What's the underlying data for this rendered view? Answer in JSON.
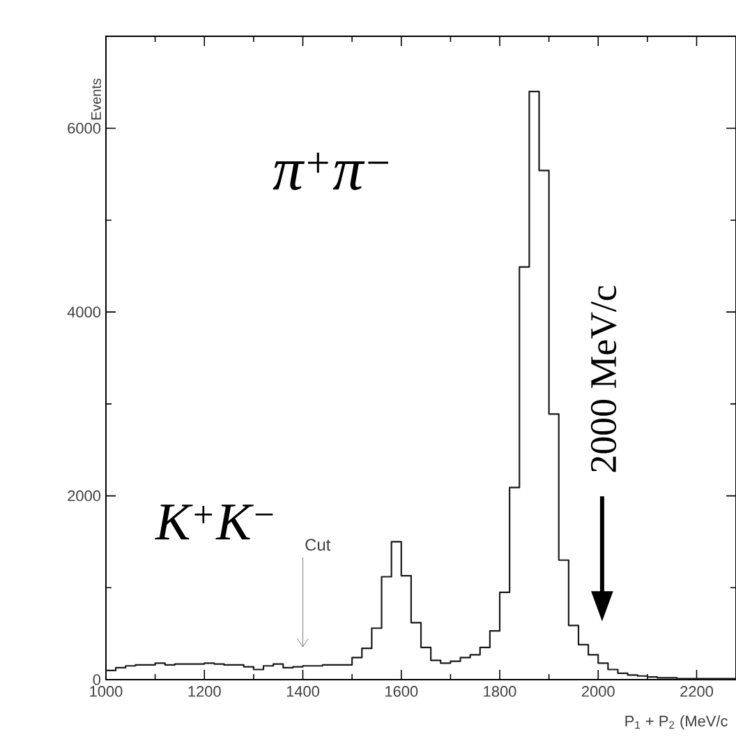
{
  "chart_data": {
    "type": "histogram",
    "color": "#1a1a1a",
    "bins": [
      1000,
      1020,
      1040,
      1060,
      1080,
      1100,
      1120,
      1140,
      1160,
      1180,
      1200,
      1220,
      1240,
      1260,
      1280,
      1300,
      1320,
      1340,
      1360,
      1380,
      1400,
      1420,
      1440,
      1460,
      1480,
      1500,
      1520,
      1540,
      1560,
      1580,
      1600,
      1620,
      1640,
      1660,
      1680,
      1700,
      1720,
      1740,
      1760,
      1780,
      1800,
      1820,
      1840,
      1860,
      1880,
      1900,
      1920,
      1940,
      1960,
      1980,
      2000,
      2020,
      2040,
      2060,
      2080,
      2100,
      2120,
      2140,
      2160,
      2180,
      2200,
      2220,
      2240,
      2260,
      2280
    ],
    "values": [
      100,
      130,
      150,
      160,
      160,
      180,
      160,
      170,
      170,
      170,
      180,
      170,
      160,
      160,
      140,
      110,
      150,
      170,
      130,
      140,
      150,
      150,
      160,
      160,
      160,
      240,
      340,
      560,
      1120,
      1500,
      1130,
      620,
      350,
      210,
      180,
      200,
      240,
      270,
      350,
      530,
      950,
      2090,
      4490,
      6400,
      5540,
      2890,
      1300,
      590,
      380,
      270,
      180,
      110,
      70,
      50,
      40,
      30,
      20,
      20,
      10,
      10,
      10,
      10,
      10,
      10
    ],
    "xlim": [
      1000,
      2280
    ],
    "ylim": [
      0,
      7000
    ],
    "xticks": [
      1000,
      1200,
      1400,
      1600,
      1800,
      2000,
      2200
    ],
    "yticks": [
      0,
      2000,
      4000,
      6000
    ],
    "xlabel": "P$_{1}$ + P$_{2}$ (MeV/c",
    "ylabel": "Events",
    "annotations": [
      "π$^{+}$π$^{−}$",
      "K$^{+}$K$^{−}$",
      "Cut",
      "2000 MeV/c"
    ]
  }
}
